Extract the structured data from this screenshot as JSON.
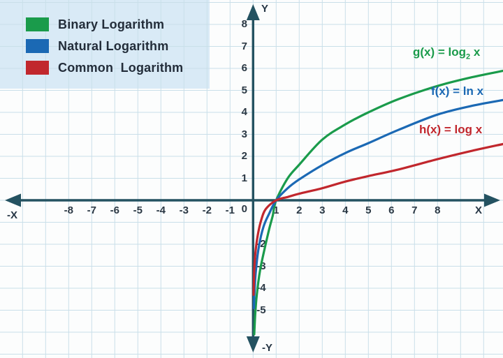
{
  "colors": {
    "grid": "#c9dfe9",
    "axis": "#245261",
    "legend_bg": "#d9eaf6",
    "tick_text": "#2b3844",
    "green": "#1a9b4b",
    "blue": "#1b69b4",
    "red": "#c1272d"
  },
  "legend": {
    "items": [
      {
        "label": "Binary Logarithm",
        "color": "#1a9b4b"
      },
      {
        "label": "Natural Logarithm",
        "color": "#1b69b4"
      },
      {
        "label": "Common  Logarithm",
        "color": "#c1272d"
      }
    ]
  },
  "curve_labels": [
    {
      "pre": "g(x) = log",
      "sub": "2",
      "post": " x",
      "color": "#1a9b4b"
    },
    {
      "pre": "f(x) = ln x",
      "sub": "",
      "post": "",
      "color": "#1b69b4"
    },
    {
      "pre": "h(x) = log x",
      "sub": "",
      "post": "",
      "color": "#c1272d"
    }
  ],
  "axis_labels": {
    "y_pos": "Y",
    "y_neg": "-Y",
    "x_pos": "X",
    "x_neg": "-X",
    "origin": "0"
  },
  "chart_data": {
    "type": "line",
    "title": "",
    "xlabel": "X",
    "ylabel": "Y",
    "grid": true,
    "legend_position": "top-left",
    "x_range": [
      -10.9,
      10.9
    ],
    "y_range": [
      -7.2,
      8.9
    ],
    "x_ticks_negative": [
      "-8",
      "-7",
      "-6",
      "-5",
      "-4",
      "-3",
      "-2",
      "-1"
    ],
    "x_ticks_positive": [
      "1",
      "2",
      "3",
      "4",
      "5",
      "6",
      "7",
      "8"
    ],
    "y_ticks_positive": [
      "8",
      "7",
      "6",
      "5",
      "4",
      "3",
      "2",
      "1"
    ],
    "y_ticks_negative": [
      "-2",
      "-3",
      "-4",
      "-5"
    ],
    "series": [
      {
        "name": "Binary Logarithm",
        "expression": "g(x) = log2(x)",
        "color": "#1a9b4b",
        "points": [
          [
            0.05,
            -6.1
          ],
          [
            0.09,
            -5.2
          ],
          [
            0.16,
            -4.3
          ],
          [
            0.3,
            -3.2
          ],
          [
            0.5,
            -2.2
          ],
          [
            0.7,
            -1.3
          ],
          [
            0.85,
            -0.7
          ],
          [
            1,
            0
          ],
          [
            1.5,
            1.0
          ],
          [
            2,
            1.62
          ],
          [
            3,
            2.76
          ],
          [
            4,
            3.45
          ],
          [
            5,
            4.0
          ],
          [
            6.3,
            4.6
          ],
          [
            8,
            5.2
          ],
          [
            9.5,
            5.6
          ],
          [
            10.9,
            5.9
          ]
        ]
      },
      {
        "name": "Natural Logarithm",
        "expression": "f(x) = ln(x)",
        "color": "#1b69b4",
        "points": [
          [
            0.035,
            -4.9
          ],
          [
            0.06,
            -4.2
          ],
          [
            0.12,
            -3.2
          ],
          [
            0.25,
            -2.1
          ],
          [
            0.45,
            -1.2
          ],
          [
            0.7,
            -0.6
          ],
          [
            1,
            0
          ],
          [
            1.5,
            0.55
          ],
          [
            2,
            0.95
          ],
          [
            3,
            1.6
          ],
          [
            4,
            2.15
          ],
          [
            5,
            2.6
          ],
          [
            6.3,
            3.2
          ],
          [
            8,
            3.9
          ],
          [
            9.5,
            4.3
          ],
          [
            10.9,
            4.57
          ]
        ]
      },
      {
        "name": "Common Logarithm",
        "expression": "h(x) = log10(x)",
        "color": "#c1272d",
        "points": [
          [
            0.02,
            -4.3
          ],
          [
            0.03,
            -3.9
          ],
          [
            0.05,
            -3.2
          ],
          [
            0.1,
            -2.4
          ],
          [
            0.2,
            -1.6
          ],
          [
            0.35,
            -0.9
          ],
          [
            0.55,
            -0.4
          ],
          [
            1,
            0
          ],
          [
            1.5,
            0.15
          ],
          [
            2,
            0.3
          ],
          [
            3,
            0.55
          ],
          [
            4,
            0.85
          ],
          [
            5,
            1.1
          ],
          [
            6.3,
            1.4
          ],
          [
            8,
            1.87
          ],
          [
            9.5,
            2.25
          ],
          [
            10.9,
            2.57
          ]
        ]
      }
    ]
  }
}
